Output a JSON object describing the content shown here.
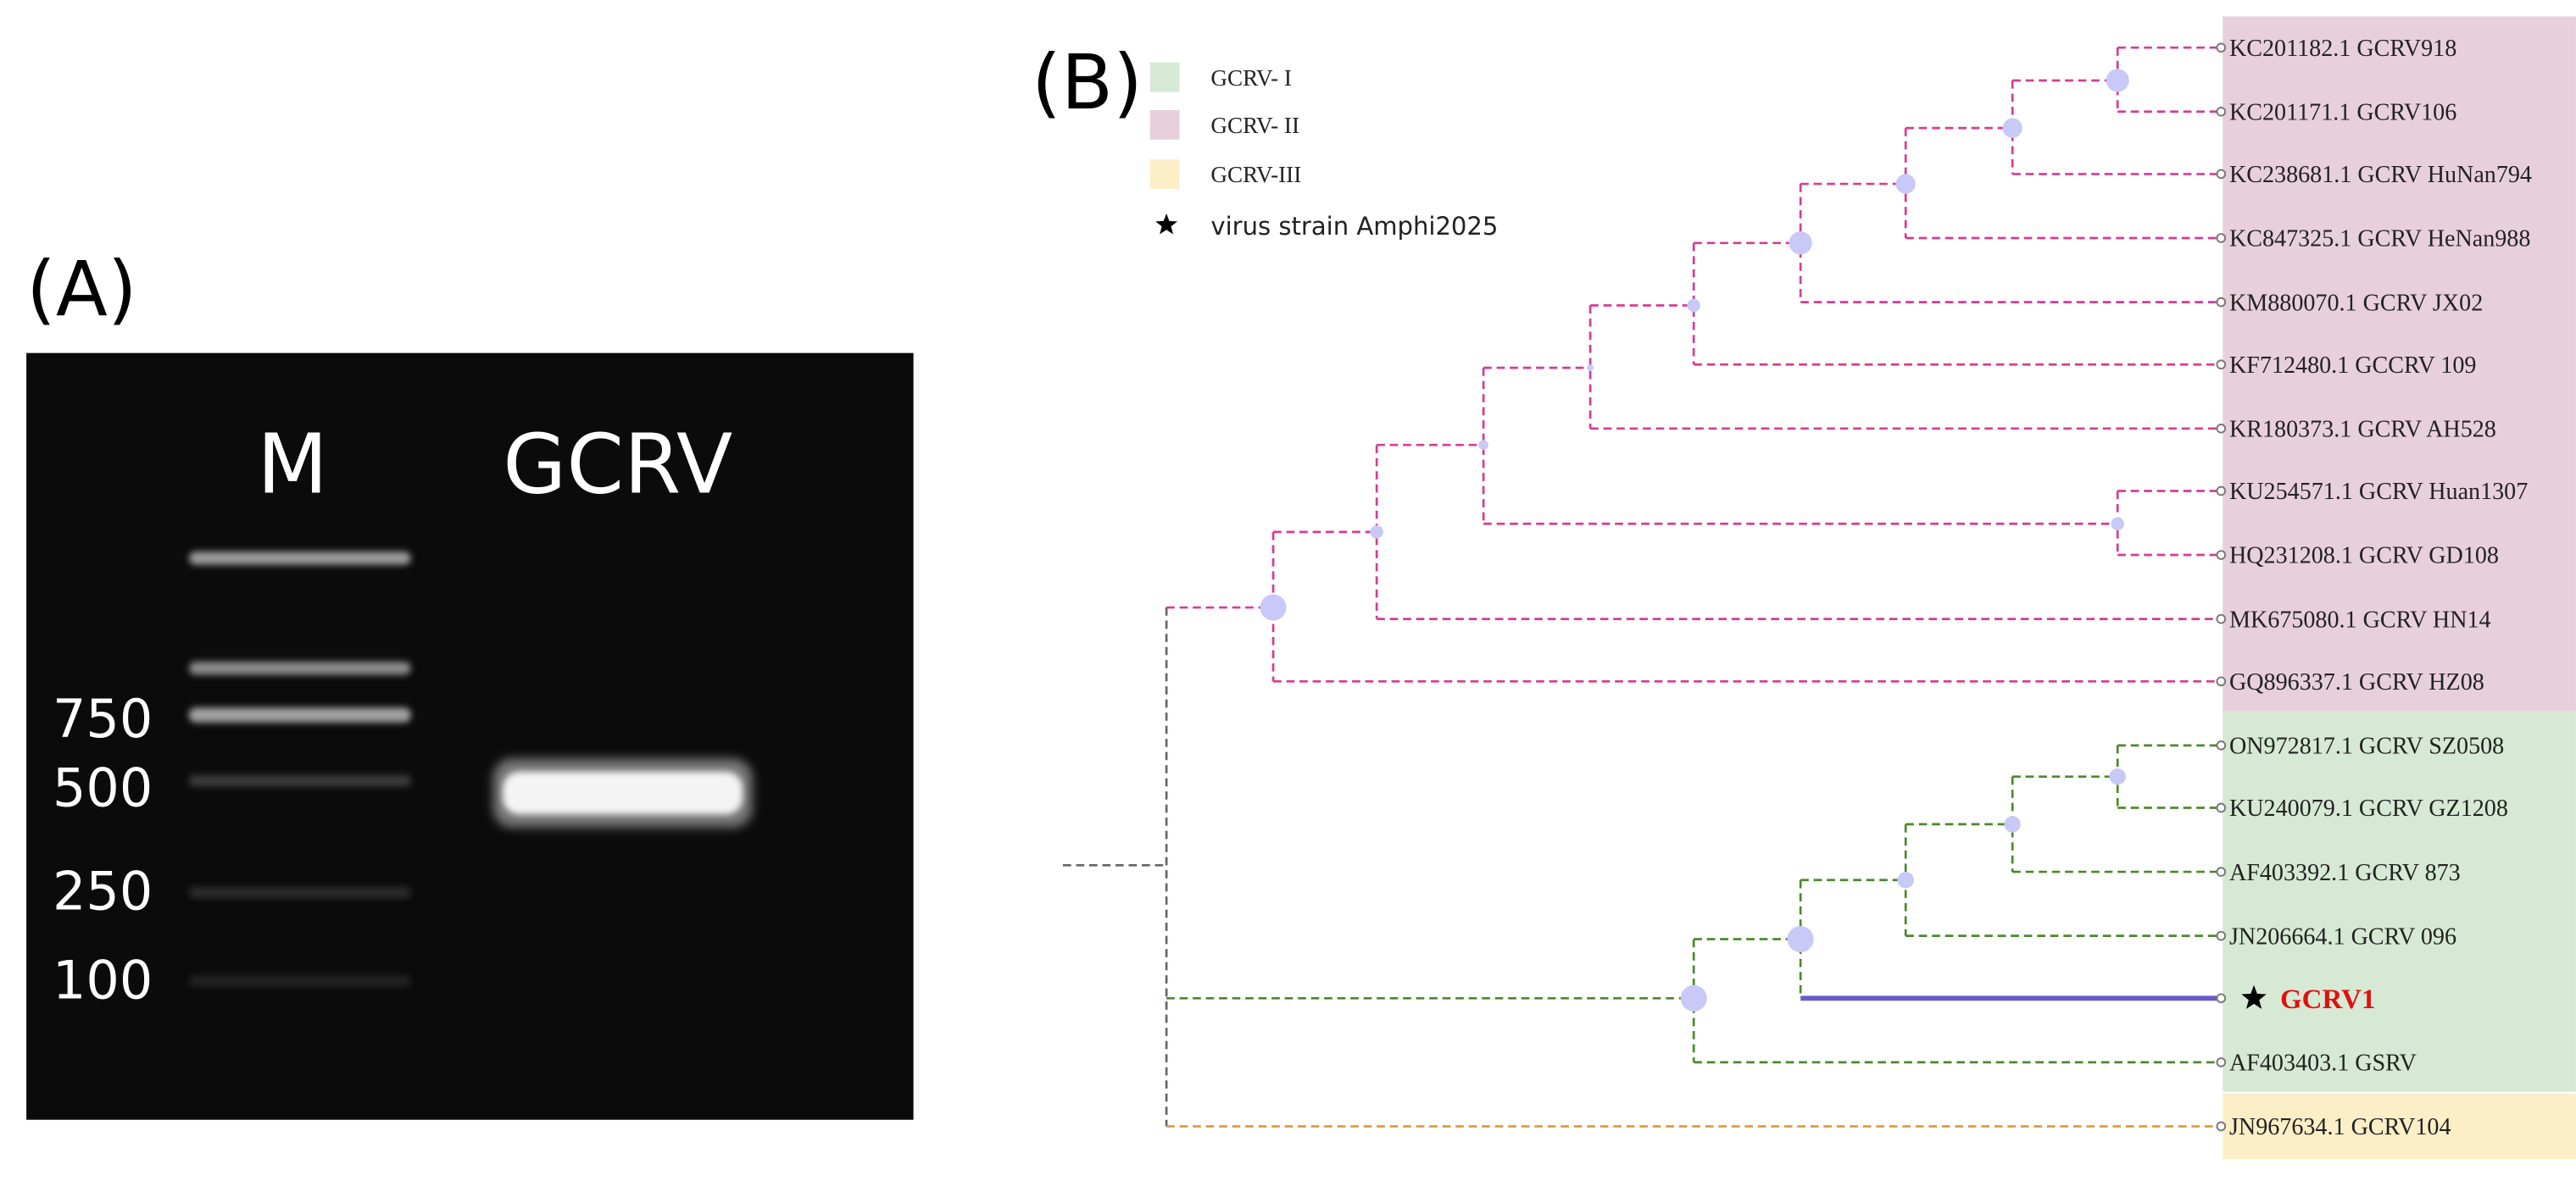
{
  "panel_a": {
    "label": "(A)",
    "lanes": [
      "M",
      "GCRV"
    ],
    "ladder": [
      "750",
      "500",
      "250",
      "100"
    ]
  },
  "panel_b": {
    "label": "(B)",
    "legend": [
      "GCRV- I",
      "GCRV- II",
      "GCRV-III",
      "virus strain Amphi2025"
    ],
    "leaves": [
      "KC201182.1 GCRV918",
      "KC201171.1 GCRV106",
      "KC238681.1 GCRV HuNan794",
      "KC847325.1 GCRV HeNan988",
      "KM880070.1 GCRV JX02",
      "KF712480.1 GCCRV 109",
      "KR180373.1 GCRV AH528",
      "KU254571.1 GCRV Huan1307",
      "HQ231208.1 GCRV GD108",
      "MK675080.1 GCRV HN14",
      "GQ896337.1 GCRV HZ08",
      "ON972817.1 GCRV SZ0508",
      "KU240079.1 GCRV GZ1208",
      "AF403392.1 GCRV 873",
      "JN206664.1 GCRV 096",
      "GCRV1",
      "AF403403.1 GSRV",
      "JN967634.1 GCRV104"
    ]
  }
}
